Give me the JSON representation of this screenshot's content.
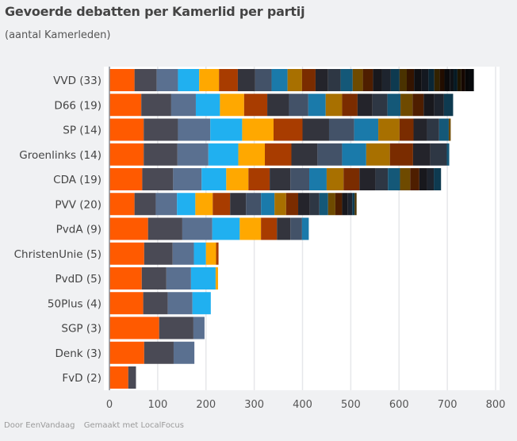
{
  "chart_data": {
    "type": "bar",
    "orientation": "horizontal",
    "stacked": true,
    "title": "Gevoerde debatten per Kamerlid per partij",
    "subtitle": "(aantal Kamerleden)",
    "xlabel": "",
    "ylabel": "",
    "xlim": [
      0,
      800
    ],
    "xticks": [
      0,
      100,
      200,
      300,
      400,
      500,
      600,
      700,
      800
    ],
    "grid": true,
    "legend": "none",
    "categories": [
      "VVD (33)",
      "D66 (19)",
      "SP (14)",
      "Groenlinks (14)",
      "CDA (19)",
      "PVV (20)",
      "PvdA (9)",
      "ChristenUnie (5)",
      "PvdD (5)",
      "50Plus (4)",
      "SGP (3)",
      "Denk (3)",
      "FvD (2)"
    ],
    "segments": [
      [
        52,
        46,
        44,
        44,
        41,
        39,
        36,
        34,
        33,
        30,
        28,
        26,
        26,
        25,
        21,
        21,
        19,
        18,
        18,
        15,
        15,
        16,
        14,
        12,
        11,
        10,
        11,
        8,
        8,
        8,
        8,
        8,
        10
      ],
      [
        66,
        62,
        51,
        50,
        50,
        48,
        45,
        40,
        36,
        34,
        32,
        31,
        31,
        27,
        25,
        23,
        22,
        20,
        19
      ],
      [
        71,
        71,
        67,
        66,
        65,
        60,
        55,
        52,
        50,
        44,
        29,
        28,
        25,
        20,
        4
      ],
      [
        71,
        70,
        64,
        62,
        55,
        55,
        54,
        51,
        50,
        49,
        48,
        36,
        34,
        5
      ],
      [
        68,
        64,
        59,
        51,
        46,
        44,
        43,
        39,
        36,
        35,
        33,
        33,
        26,
        25,
        21,
        19,
        16,
        14,
        15
      ],
      [
        52,
        44,
        44,
        38,
        36,
        36,
        33,
        31,
        28,
        24,
        25,
        24,
        20,
        18,
        15,
        14,
        12,
        9,
        5,
        4
      ],
      [
        80,
        71,
        62,
        57,
        44,
        33,
        28,
        24,
        14
      ],
      [
        72,
        59,
        44,
        25,
        21,
        5
      ],
      [
        67,
        51,
        51,
        51,
        5
      ],
      [
        70,
        51,
        51,
        38
      ],
      [
        103,
        71,
        23
      ],
      [
        72,
        61,
        43
      ],
      [
        39,
        16
      ]
    ],
    "totals": [
      755,
      712,
      707,
      704,
      687,
      512,
      413,
      226,
      225,
      210,
      197,
      176,
      55
    ],
    "colors": [
      "#ff5a00",
      "#4a4a55",
      "#5a7090",
      "#20b0f0",
      "#ffa800",
      "#a83c00",
      "#33343d",
      "#435268",
      "#1a7aaa",
      "#a87000",
      "#7a2c00",
      "#24242b",
      "#2e3744",
      "#145878",
      "#6e4a00",
      "#4e1e00",
      "#18181d",
      "#1e242e",
      "#0e3a50",
      "#4a3200",
      "#341400",
      "#101013",
      "#141820",
      "#0a2635",
      "#322200",
      "#220d00",
      "#0b0b0d",
      "#0e1116",
      "#061a24",
      "#1e1500",
      "#150700",
      "#070708",
      "#07090c"
    ]
  },
  "footer": {
    "source": "Door EenVandaag",
    "made_with": "Gemaakt met LocalFocus"
  }
}
